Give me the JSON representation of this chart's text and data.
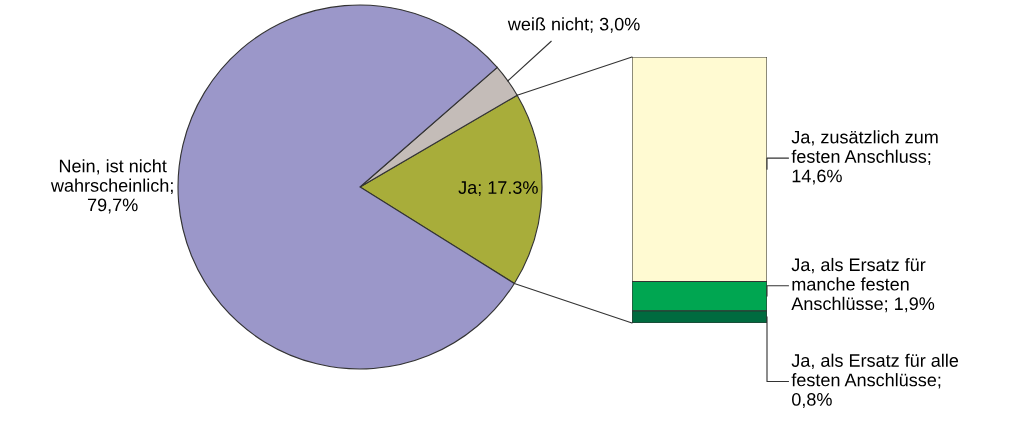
{
  "chart_data": [
    {
      "type": "pie",
      "categories": [
        "Ja; 17.3%",
        "weiß nicht; 3,0%",
        "Nein, ist nicht\nwahrscheinlich;\n79,7%"
      ],
      "values": [
        17.3,
        3.0,
        79.7
      ],
      "colors": [
        "#a8ad3a",
        "#c4bcb8",
        "#9b97c9"
      ]
    },
    {
      "type": "bar",
      "stacked": true,
      "categories": [
        null
      ],
      "series": [
        {
          "color": "#006b3f",
          "values": [
            0.8
          ],
          "value_labels": [
            "Ja, als Ersatz für alle\nfesten Anschlüsse;\n0,8%"
          ]
        },
        {
          "color": "#00a651",
          "values": [
            1.9
          ],
          "value_labels": [
            "Ja, als Ersatz für\nmanche festen\nAnschlüsse; 1,9%"
          ]
        },
        {
          "color": "#fffad2",
          "values": [
            14.6
          ],
          "value_labels": [
            "Ja, zusätzlich zum\nfesten Anschluss;\n14,6%"
          ]
        }
      ]
    }
  ]
}
